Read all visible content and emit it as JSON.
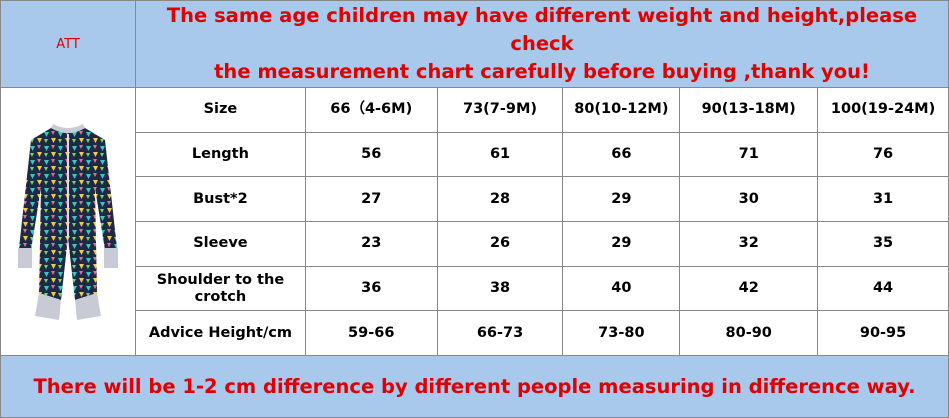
{
  "header": {
    "att": "ATT",
    "notice": [
      "The same age children may have different weight and height,please check",
      "the measurement chart carefully before buying ,thank you!"
    ]
  },
  "table": {
    "rows": [
      [
        "Size",
        "66（4-6M)",
        "73(7-9M)",
        "80(10-12M)",
        "90(13-18M)",
        "100(19-24M)"
      ],
      [
        "Length",
        "56",
        "61",
        "66",
        "71",
        "76"
      ],
      [
        "Bust*2",
        "27",
        "28",
        "29",
        "30",
        "31"
      ],
      [
        "Sleeve",
        "23",
        "26",
        "29",
        "32",
        "35"
      ],
      [
        "Shoulder to the crotch",
        "36",
        "38",
        "40",
        "42",
        "44"
      ],
      [
        "Advice Height/cm",
        "59-66",
        "66-73",
        "73-80",
        "80-90",
        "90-95"
      ]
    ]
  },
  "footer": {
    "text": "There will be 1-2 cm difference by different people measuring in difference way."
  }
}
